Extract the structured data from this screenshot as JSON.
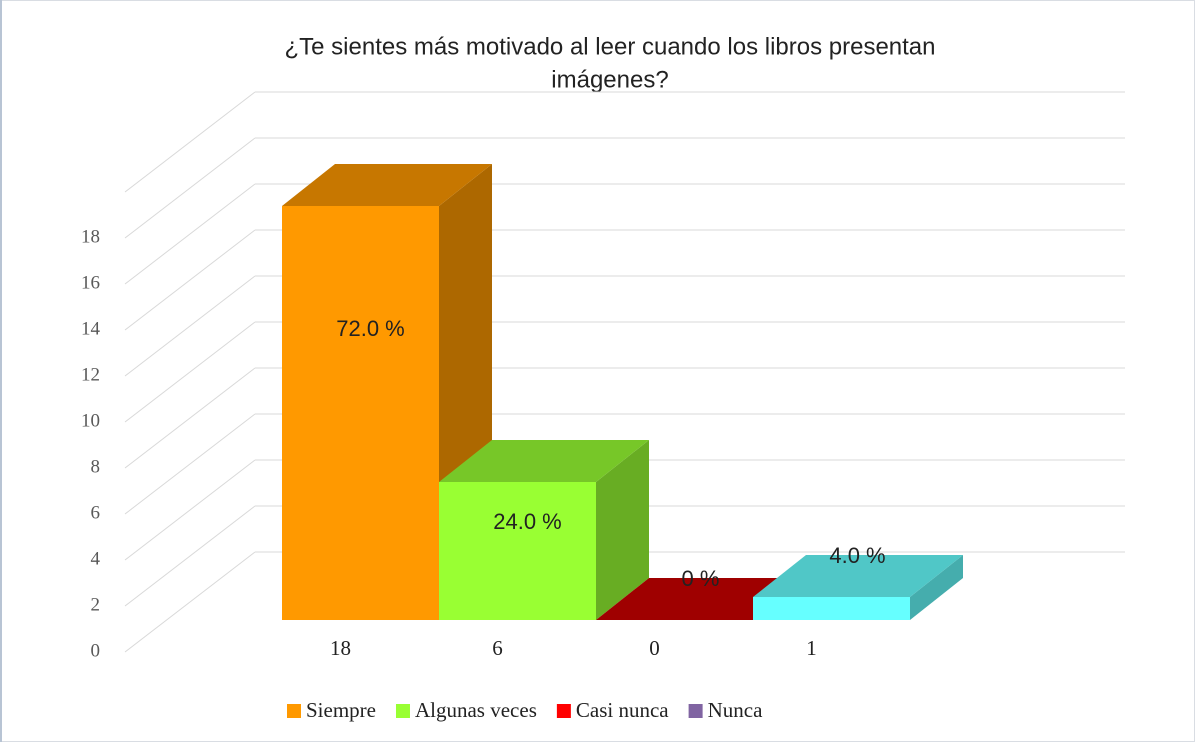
{
  "chart_data": {
    "type": "bar3d",
    "title": [
      "¿Te sientes más motivado al leer cuando los libros presentan",
      "imágenes?"
    ],
    "categories": [
      "Siempre",
      "Algunas veces",
      "Casi nunca",
      "Nunca"
    ],
    "values": [
      18,
      6,
      0,
      1
    ],
    "percent_labels": [
      "72.0 %",
      "24.0 %",
      "0 %",
      "4.0 %"
    ],
    "colors": [
      "#ff9900",
      "#99ff33",
      "#cc0000",
      "#66ffff"
    ],
    "legend_colors": [
      "#ff9900",
      "#99ff33",
      "#ff0000",
      "#8064a2"
    ],
    "ylim": [
      0,
      20
    ],
    "yticks": [
      0,
      2,
      4,
      6,
      8,
      10,
      12,
      14,
      16,
      18
    ],
    "grid": true,
    "legend": "bottom"
  }
}
